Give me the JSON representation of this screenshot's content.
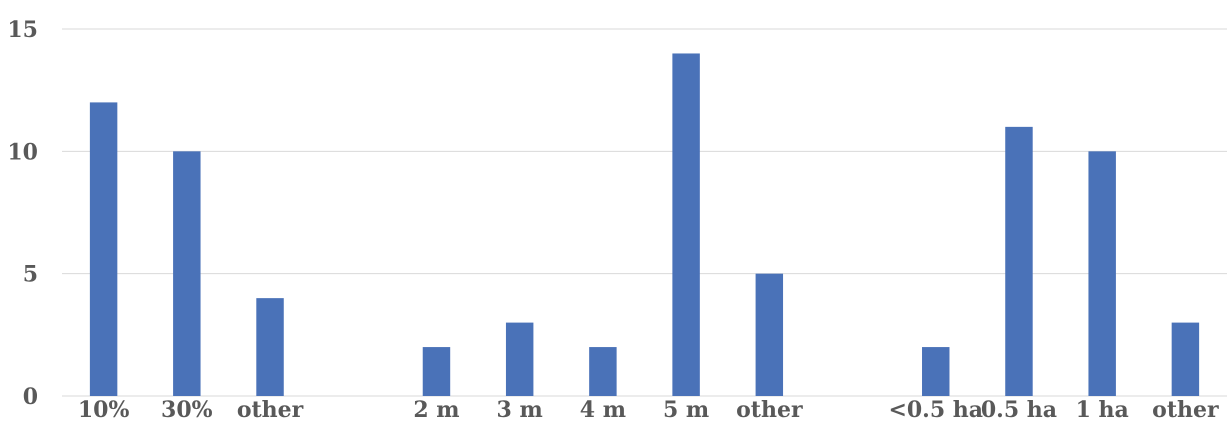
{
  "chart_data": {
    "type": "bar",
    "title": "",
    "xlabel": "",
    "ylabel": "",
    "ylim": [
      0,
      15
    ],
    "yticks": [
      0,
      5,
      10,
      15
    ],
    "grid": true,
    "bar_color": "#4a72b8",
    "groups": [
      {
        "categories": [
          "10%",
          "30%",
          "other"
        ],
        "values": [
          12,
          10,
          4
        ]
      },
      {
        "categories": [
          "2 m",
          "3 m",
          "4 m",
          "5 m",
          "other"
        ],
        "values": [
          2,
          3,
          2,
          14,
          5
        ]
      },
      {
        "categories": [
          "<0.5 ha",
          "0.5 ha",
          "1 ha",
          "other"
        ],
        "values": [
          2,
          11,
          10,
          3
        ]
      }
    ]
  }
}
